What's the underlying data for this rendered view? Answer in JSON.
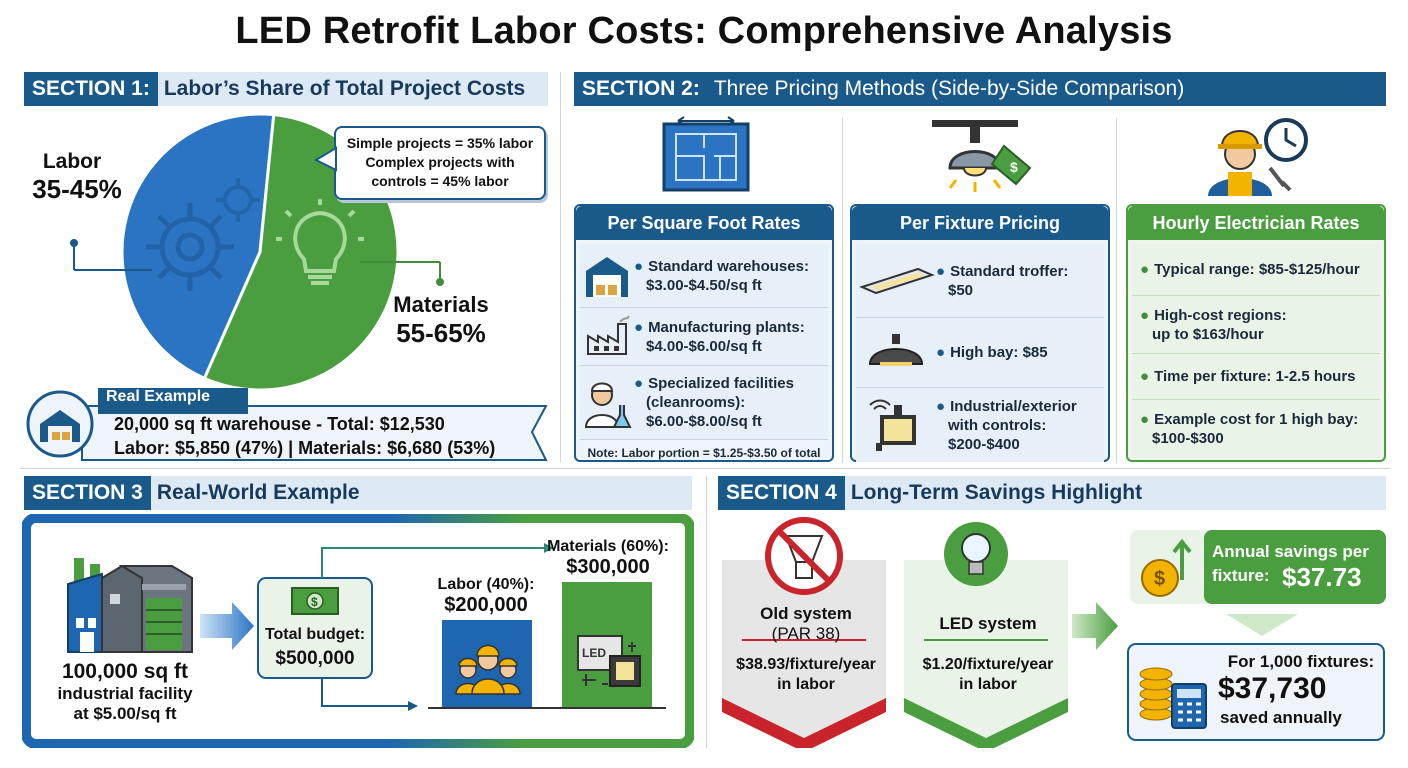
{
  "title": "LED Retrofit Labor Costs: Comprehensive Analysis",
  "section1": {
    "num": "SECTION 1:",
    "label": "Labor’s Share of Total Project Costs",
    "labor_title": "Labor",
    "labor_value": "35-45%",
    "materials_title": "Materials",
    "materials_value": "55-65%",
    "callout": [
      "Simple projects = 35% labor",
      "Complex projects with",
      "controls = 45% labor"
    ],
    "example_label": "Real Example",
    "example_line1": "20,000 sq ft warehouse - Total: $12,530",
    "example_line2": "Labor: $5,850 (47%) | Materials: $6,680 (53%)",
    "pie_labor_fraction": 0.45
  },
  "section2": {
    "num": "SECTION 2:",
    "label": "Three Pricing Methods (Side-by-Side Comparison)",
    "sqft": {
      "title": "Per Square Foot Rates",
      "items": [
        [
          "Standard warehouses:",
          "$3.00-$4.50/sq ft"
        ],
        [
          "Manufacturing plants:",
          "$4.00-$6.00/sq ft"
        ],
        [
          "Specialized facilities",
          "(cleanrooms):",
          "$6.00-$8.00/sq ft"
        ]
      ],
      "note": "Note: Labor portion = $1.25-$3.50 of total"
    },
    "fixture": {
      "title": "Per Fixture Pricing",
      "items": [
        [
          "Standard troffer:",
          "$50"
        ],
        [
          "High bay: $85"
        ],
        [
          "Industrial/exterior",
          "with controls:",
          "$200-$400"
        ]
      ]
    },
    "hourly": {
      "title": "Hourly Electrician Rates",
      "items": [
        [
          "Typical range: $85-$125/hour"
        ],
        [
          "High-cost regions:",
          "up to $163/hour"
        ],
        [
          "Time per fixture: 1-2.5 hours"
        ],
        [
          "Example cost for 1 high bay:",
          "$100-$300"
        ]
      ]
    }
  },
  "section3": {
    "num": "SECTION 3",
    "label": "Real-World Example",
    "facility": [
      "100,000 sq ft",
      "industrial facility",
      "at $5.00/sq ft"
    ],
    "budget_label": "Total budget:",
    "budget_value": "$500,000",
    "labor_label": "Labor (40%):",
    "labor_value": "$200,000",
    "materials_label": "Materials (60%):",
    "materials_value": "$300,000",
    "led_tag": "LED"
  },
  "section4": {
    "num": "SECTION 4",
    "label": "Long-Term Savings Highlight",
    "old_title": "Old system",
    "old_sub": "(PAR 38)",
    "old_value": "$38.93/fixture/year",
    "old_unit": "in labor",
    "led_title": "LED system",
    "led_value": "$1.20/fixture/year",
    "led_unit": "in labor",
    "annual_label1": "Annual savings per",
    "annual_label2": "fixture:",
    "annual_value": "$37.73",
    "thousand_label": "For 1,000 fixtures:",
    "thousand_value": "$37,730",
    "thousand_sub": "saved annually"
  },
  "colors": {
    "blue": "#1a5a8a",
    "pie_blue": "#2b74c4",
    "green": "#4a9e3f",
    "red": "#c9232c"
  }
}
